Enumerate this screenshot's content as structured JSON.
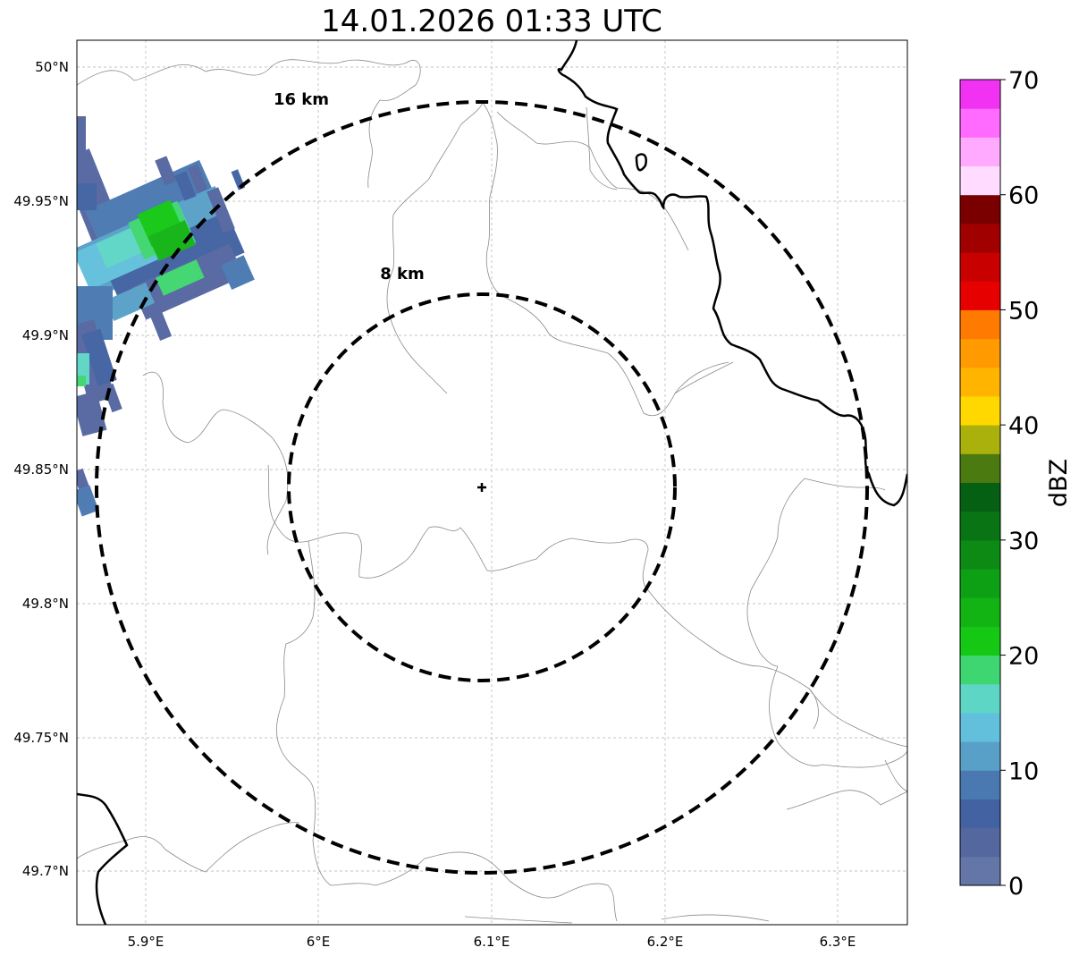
{
  "title": "14.01.2026 01:33 UTC",
  "map": {
    "lon_ticks": [
      "5.9°E",
      "6°E",
      "6.1°E",
      "6.2°E",
      "6.3°E"
    ],
    "lat_ticks": [
      "50°N",
      "49.95°N",
      "49.9°N",
      "49.85°N",
      "49.8°N",
      "49.75°N",
      "49.7°N"
    ],
    "radar_center": "radar-site-marker",
    "range_rings": [
      {
        "label": "8 km"
      },
      {
        "label": "16 km"
      }
    ]
  },
  "colorbar": {
    "title": "dBZ",
    "tick_labels": [
      "0",
      "10",
      "20",
      "30",
      "40",
      "50",
      "60",
      "70"
    ],
    "colors": [
      "#6476a8",
      "#54679f",
      "#4262a2",
      "#4a78b0",
      "#58a0c8",
      "#62c0dc",
      "#5ed6c6",
      "#3ed670",
      "#14c814",
      "#12b414",
      "#0ea014",
      "#0c8a14",
      "#087414",
      "#066014",
      "#4a7a10",
      "#aab00c",
      "#ffd800",
      "#ffb400",
      "#ff9a00",
      "#ff7a00",
      "#e60000",
      "#c80000",
      "#a00000",
      "#7a0000",
      "#ffdcff",
      "#ffaaff",
      "#ff6aff",
      "#f232f2"
    ]
  },
  "chart_data": {
    "type": "heatmap",
    "title": "14.01.2026 01:33 UTC",
    "xlabel": "",
    "ylabel": "",
    "xlim": [
      5.86,
      6.34
    ],
    "ylim": [
      49.68,
      50.01
    ],
    "colorbar_label": "dBZ",
    "colorbar_range": [
      0,
      70
    ]
  }
}
